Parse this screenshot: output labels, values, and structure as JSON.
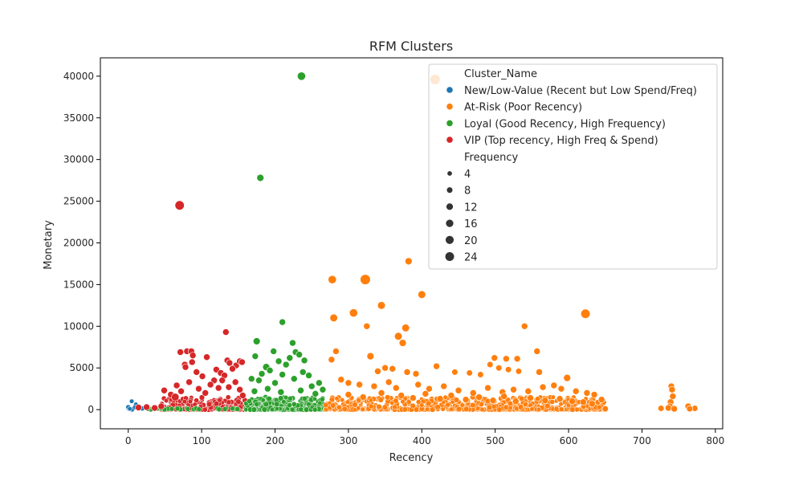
{
  "chart_data": {
    "type": "scatter",
    "title": "RFM Clusters",
    "xlabel": "Recency",
    "ylabel": "Monetary",
    "xlim": [
      -38,
      810
    ],
    "ylim": [
      -2300,
      42200
    ],
    "xticks": [
      0,
      100,
      200,
      300,
      400,
      500,
      600,
      700,
      800
    ],
    "yticks": [
      0,
      5000,
      10000,
      15000,
      20000,
      25000,
      30000,
      35000,
      40000
    ],
    "grid": false,
    "legend": {
      "placement": "top-right",
      "hue_title": "Cluster_Name",
      "size_title": "Frequency",
      "size_levels": [
        4,
        8,
        12,
        16,
        20,
        24
      ]
    },
    "series": [
      {
        "name": "New/Low-Value (Recent but Low Spend/Freq)",
        "color": "#1f77b4",
        "points": [
          [
            0,
            150,
            2
          ],
          [
            1,
            60,
            1
          ],
          [
            0,
            300,
            2
          ],
          [
            2,
            90,
            1
          ]
        ]
      },
      {
        "name": "At-Risk (Poor Recency)",
        "color": "#ff7f0e",
        "points": [
          [
            418,
            39600,
            20
          ],
          [
            382,
            17800,
            8
          ],
          [
            323,
            15600,
            20
          ],
          [
            278,
            15600,
            12
          ],
          [
            400,
            13800,
            10
          ],
          [
            307,
            11600,
            12
          ],
          [
            623,
            11500,
            16
          ],
          [
            345,
            12500,
            10
          ],
          [
            280,
            11000,
            10
          ],
          [
            325,
            10000,
            6
          ],
          [
            540,
            10000,
            6
          ],
          [
            378,
            9800,
            10
          ],
          [
            368,
            8800,
            10
          ],
          [
            374,
            8000,
            8
          ],
          [
            283,
            7000,
            6
          ],
          [
            330,
            6400,
            8
          ],
          [
            557,
            7000,
            6
          ],
          [
            277,
            6000,
            6
          ],
          [
            499,
            6200,
            6
          ],
          [
            515,
            6100,
            6
          ],
          [
            530,
            6100,
            6
          ],
          [
            560,
            4500,
            6
          ],
          [
            598,
            3800,
            8
          ],
          [
            420,
            5200,
            6
          ],
          [
            350,
            5000,
            6
          ],
          [
            360,
            4900,
            6
          ],
          [
            340,
            4600,
            6
          ],
          [
            380,
            4500,
            6
          ],
          [
            392,
            4300,
            6
          ],
          [
            445,
            4500,
            5
          ],
          [
            465,
            4400,
            5
          ],
          [
            480,
            4200,
            5
          ],
          [
            505,
            5000,
            5
          ],
          [
            518,
            4800,
            5
          ],
          [
            532,
            4600,
            5
          ],
          [
            493,
            5400,
            5
          ],
          [
            290,
            3600,
            6
          ],
          [
            300,
            3200,
            6
          ],
          [
            315,
            3000,
            6
          ],
          [
            335,
            2800,
            6
          ],
          [
            355,
            3300,
            6
          ],
          [
            365,
            2600,
            6
          ],
          [
            395,
            3000,
            6
          ],
          [
            410,
            2500,
            6
          ],
          [
            430,
            2800,
            6
          ],
          [
            450,
            2300,
            6
          ],
          [
            470,
            2000,
            6
          ],
          [
            490,
            2600,
            6
          ],
          [
            510,
            2100,
            6
          ],
          [
            525,
            2400,
            6
          ],
          [
            545,
            2200,
            6
          ],
          [
            565,
            2700,
            6
          ],
          [
            580,
            2900,
            6
          ],
          [
            590,
            2500,
            6
          ],
          [
            610,
            2200,
            6
          ],
          [
            625,
            2000,
            6
          ],
          [
            635,
            1800,
            6
          ],
          [
            645,
            1200,
            6
          ],
          [
            740,
            2800,
            6
          ],
          [
            741,
            2400,
            6
          ],
          [
            742,
            1600,
            6
          ],
          [
            739,
            900,
            6
          ],
          [
            738,
            400,
            6
          ],
          [
            736,
            200,
            6
          ],
          [
            744,
            100,
            6
          ],
          [
            726,
            150,
            5
          ],
          [
            763,
            400,
            6
          ],
          [
            772,
            150,
            5
          ],
          [
            765,
            100,
            5
          ],
          [
            650,
            100,
            5
          ],
          [
            300,
            1800,
            6
          ],
          [
            320,
            1500,
            6
          ],
          [
            345,
            2000,
            6
          ],
          [
            372,
            1700,
            6
          ],
          [
            388,
            1400,
            6
          ],
          [
            405,
            1900,
            6
          ],
          [
            425,
            1300,
            6
          ],
          [
            440,
            1700,
            6
          ],
          [
            460,
            1200,
            6
          ],
          [
            478,
            1500,
            6
          ],
          [
            497,
            1100,
            6
          ],
          [
            512,
            1600,
            6
          ],
          [
            528,
            1000,
            6
          ],
          [
            548,
            1400,
            6
          ],
          [
            568,
            1100,
            6
          ],
          [
            588,
            1300,
            6
          ],
          [
            605,
            1000,
            6
          ],
          [
            620,
            900,
            6
          ],
          [
            632,
            700,
            6
          ]
        ]
      },
      {
        "name": "Loyal (Good Recency, High Frequency)",
        "color": "#2ca02c",
        "points": [
          [
            236,
            40000,
            12
          ],
          [
            180,
            27800,
            8
          ],
          [
            210,
            10500,
            6
          ],
          [
            175,
            8200,
            8
          ],
          [
            224,
            8000,
            6
          ],
          [
            228,
            6900,
            6
          ],
          [
            233,
            6600,
            6
          ],
          [
            198,
            7000,
            6
          ],
          [
            220,
            6200,
            6
          ],
          [
            188,
            5100,
            8
          ],
          [
            205,
            5800,
            6
          ],
          [
            240,
            5900,
            6
          ],
          [
            215,
            5400,
            6
          ],
          [
            173,
            6400,
            6
          ],
          [
            182,
            4300,
            6
          ],
          [
            238,
            4500,
            6
          ],
          [
            193,
            4700,
            6
          ],
          [
            210,
            4200,
            6
          ],
          [
            246,
            4100,
            6
          ],
          [
            260,
            3200,
            6
          ],
          [
            168,
            3700,
            6
          ],
          [
            178,
            3500,
            6
          ],
          [
            200,
            3200,
            6
          ],
          [
            226,
            3700,
            6
          ],
          [
            250,
            2800,
            6
          ],
          [
            190,
            2500,
            6
          ],
          [
            265,
            2400,
            6
          ],
          [
            172,
            2200,
            6
          ],
          [
            208,
            2100,
            6
          ],
          [
            235,
            2300,
            6
          ],
          [
            255,
            1900,
            6
          ]
        ]
      },
      {
        "name": "VIP (Top recency, High Freq & Spend)",
        "color": "#d62728",
        "points": [
          [
            70,
            24500,
            16
          ],
          [
            133,
            9300,
            6
          ],
          [
            71,
            6900,
            6
          ],
          [
            80,
            7000,
            6
          ],
          [
            86,
            7000,
            6
          ],
          [
            88,
            6500,
            6
          ],
          [
            107,
            6300,
            6
          ],
          [
            135,
            5900,
            6
          ],
          [
            147,
            5300,
            6
          ],
          [
            152,
            5800,
            6
          ],
          [
            155,
            5700,
            6
          ],
          [
            77,
            5400,
            6
          ],
          [
            78,
            5100,
            6
          ],
          [
            138,
            5600,
            6
          ],
          [
            87,
            5700,
            6
          ],
          [
            93,
            4500,
            6
          ],
          [
            120,
            4800,
            6
          ],
          [
            126,
            4400,
            6
          ],
          [
            131,
            4100,
            6
          ],
          [
            142,
            4900,
            6
          ],
          [
            101,
            4000,
            6
          ],
          [
            117,
            3500,
            6
          ],
          [
            66,
            2900,
            6
          ],
          [
            83,
            3300,
            6
          ],
          [
            112,
            3000,
            6
          ],
          [
            128,
            3500,
            6
          ],
          [
            146,
            3300,
            6
          ],
          [
            49,
            2300,
            6
          ],
          [
            58,
            1800,
            6
          ],
          [
            64,
            1500,
            10
          ],
          [
            72,
            2200,
            6
          ],
          [
            96,
            2500,
            6
          ],
          [
            105,
            2000,
            6
          ],
          [
            123,
            2600,
            6
          ],
          [
            137,
            2700,
            6
          ],
          [
            152,
            2400,
            6
          ],
          [
            156,
            1700,
            6
          ],
          [
            25,
            300,
            6
          ],
          [
            14,
            250,
            6
          ],
          [
            36,
            200,
            6
          ],
          [
            45,
            400,
            6
          ]
        ]
      }
    ]
  }
}
